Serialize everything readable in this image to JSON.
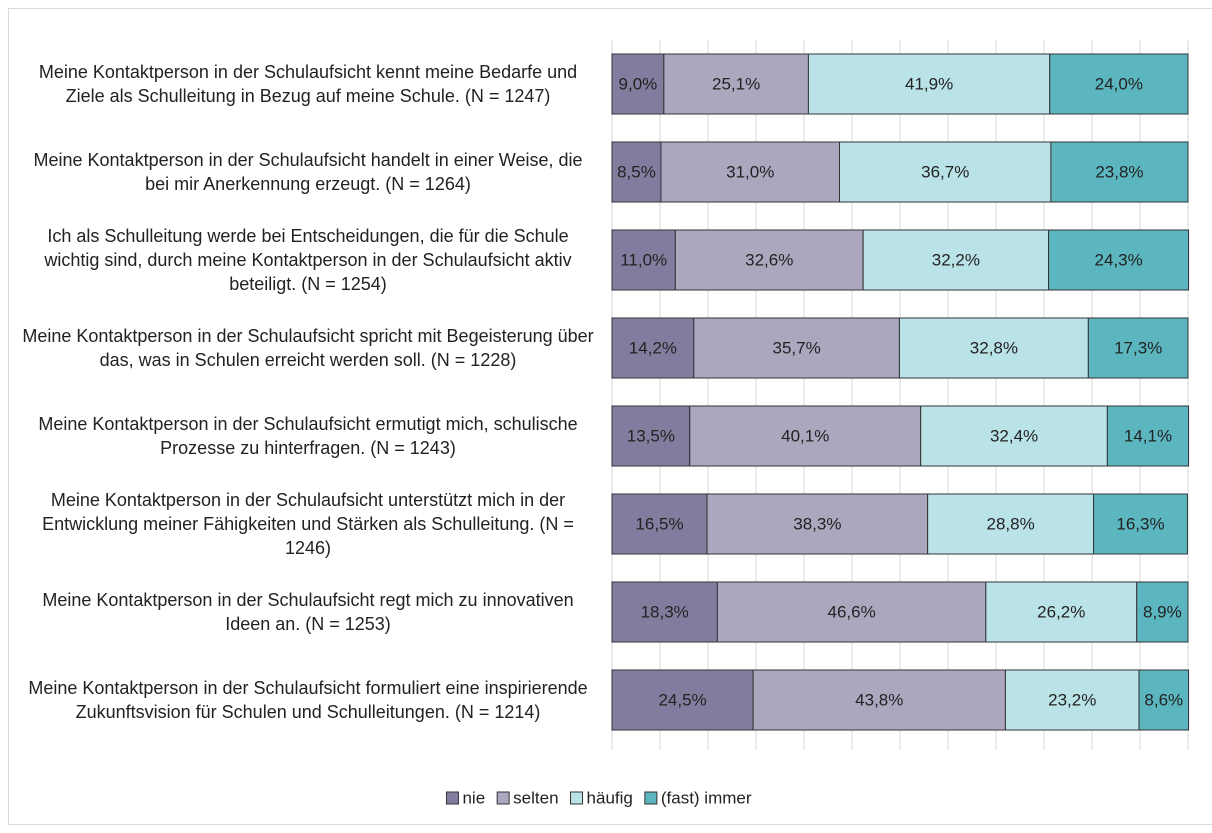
{
  "chart_data": {
    "type": "stacked-bar-horizontal",
    "categories": [
      "Meine Kontaktperson in der Schulaufsicht kennt meine Bedarfe und Ziele als Schulleitung in Bezug auf meine Schule. (N = 1247)",
      "Meine Kontaktperson in der Schulaufsicht handelt in einer Weise, die bei mir Anerkennung erzeugt. (N = 1264)",
      "Ich als Schulleitung werde bei Entscheidungen, die für die Schule wichtig sind, durch meine Kontaktperson in der Schulaufsicht aktiv beteiligt. (N = 1254)",
      "Meine Kontaktperson in der Schulaufsicht spricht mit Begeisterung über das, was in Schulen erreicht werden soll. (N = 1228)",
      "Meine Kontaktperson in der Schulaufsicht ermutigt mich, schulische Prozesse zu hinterfragen. (N = 1243)",
      "Meine Kontaktperson in der Schulaufsicht unterstützt mich in der Entwicklung meiner Fähigkeiten und Stärken als Schulleitung. (N = 1246)",
      "Meine Kontaktperson in der Schulaufsicht regt mich zu innovativen Ideen an. (N = 1253)",
      "Meine Kontaktperson in der Schulaufsicht formuliert eine inspirierende Zukunftsvision für Schulen und Schulleitungen. (N = 1214)"
    ],
    "series": [
      {
        "name": "nie",
        "color": "#827d9e",
        "values": [
          9.0,
          8.5,
          11.0,
          14.2,
          13.5,
          16.5,
          18.3,
          24.5
        ],
        "value_labels": [
          "9,0%",
          "8,5%",
          "11,0%",
          "14,2%",
          "13,5%",
          "16,5%",
          "18,3%",
          "24,5%"
        ]
      },
      {
        "name": "selten",
        "color": "#aca7bf",
        "values": [
          25.1,
          31.0,
          32.6,
          35.7,
          40.1,
          38.3,
          46.6,
          43.8
        ],
        "value_labels": [
          "25,1%",
          "31,0%",
          "32,6%",
          "35,7%",
          "40,1%",
          "38,3%",
          "46,6%",
          "43,8%"
        ]
      },
      {
        "name": "häufig",
        "color": "#bae3e7",
        "values": [
          41.9,
          36.7,
          32.2,
          32.8,
          32.4,
          28.8,
          26.2,
          23.2
        ],
        "value_labels": [
          "41,9%",
          "36,7%",
          "32,2%",
          "32,8%",
          "32,4%",
          "28,8%",
          "26,2%",
          "23,2%"
        ]
      },
      {
        "name": "(fast) immer",
        "color": "#5bb6bf",
        "values": [
          24.0,
          23.8,
          24.3,
          17.3,
          14.1,
          16.3,
          8.9,
          8.6
        ],
        "value_labels": [
          "24,0%",
          "23,8%",
          "24,3%",
          "17,3%",
          "14,1%",
          "16,3%",
          "8,9%",
          "8,6%"
        ]
      }
    ],
    "xlim": [
      0,
      100
    ],
    "xticks": [
      0,
      8.33,
      16.67,
      25,
      33.33,
      41.67,
      50,
      58.33,
      66.67,
      75,
      83.33,
      91.67,
      100
    ],
    "grid": true,
    "legend": "bottom"
  }
}
